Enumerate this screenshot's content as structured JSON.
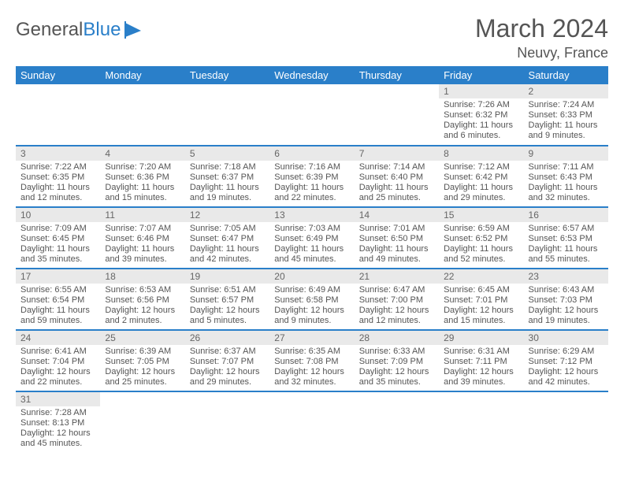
{
  "logo": {
    "text1": "General",
    "text2": "Blue"
  },
  "title": "March 2024",
  "location": "Neuvy, France",
  "colors": {
    "header_bg": "#2a7fc9",
    "header_text": "#ffffff",
    "daynum_bg": "#e9e9e9",
    "row_divider": "#2a7fc9",
    "body_text": "#555555"
  },
  "day_names": [
    "Sunday",
    "Monday",
    "Tuesday",
    "Wednesday",
    "Thursday",
    "Friday",
    "Saturday"
  ],
  "weeks": [
    [
      null,
      null,
      null,
      null,
      null,
      {
        "n": "1",
        "sunrise": "7:26 AM",
        "sunset": "6:32 PM",
        "daylight": "11 hours and 6 minutes."
      },
      {
        "n": "2",
        "sunrise": "7:24 AM",
        "sunset": "6:33 PM",
        "daylight": "11 hours and 9 minutes."
      }
    ],
    [
      {
        "n": "3",
        "sunrise": "7:22 AM",
        "sunset": "6:35 PM",
        "daylight": "11 hours and 12 minutes."
      },
      {
        "n": "4",
        "sunrise": "7:20 AM",
        "sunset": "6:36 PM",
        "daylight": "11 hours and 15 minutes."
      },
      {
        "n": "5",
        "sunrise": "7:18 AM",
        "sunset": "6:37 PM",
        "daylight": "11 hours and 19 minutes."
      },
      {
        "n": "6",
        "sunrise": "7:16 AM",
        "sunset": "6:39 PM",
        "daylight": "11 hours and 22 minutes."
      },
      {
        "n": "7",
        "sunrise": "7:14 AM",
        "sunset": "6:40 PM",
        "daylight": "11 hours and 25 minutes."
      },
      {
        "n": "8",
        "sunrise": "7:12 AM",
        "sunset": "6:42 PM",
        "daylight": "11 hours and 29 minutes."
      },
      {
        "n": "9",
        "sunrise": "7:11 AM",
        "sunset": "6:43 PM",
        "daylight": "11 hours and 32 minutes."
      }
    ],
    [
      {
        "n": "10",
        "sunrise": "7:09 AM",
        "sunset": "6:45 PM",
        "daylight": "11 hours and 35 minutes."
      },
      {
        "n": "11",
        "sunrise": "7:07 AM",
        "sunset": "6:46 PM",
        "daylight": "11 hours and 39 minutes."
      },
      {
        "n": "12",
        "sunrise": "7:05 AM",
        "sunset": "6:47 PM",
        "daylight": "11 hours and 42 minutes."
      },
      {
        "n": "13",
        "sunrise": "7:03 AM",
        "sunset": "6:49 PM",
        "daylight": "11 hours and 45 minutes."
      },
      {
        "n": "14",
        "sunrise": "7:01 AM",
        "sunset": "6:50 PM",
        "daylight": "11 hours and 49 minutes."
      },
      {
        "n": "15",
        "sunrise": "6:59 AM",
        "sunset": "6:52 PM",
        "daylight": "11 hours and 52 minutes."
      },
      {
        "n": "16",
        "sunrise": "6:57 AM",
        "sunset": "6:53 PM",
        "daylight": "11 hours and 55 minutes."
      }
    ],
    [
      {
        "n": "17",
        "sunrise": "6:55 AM",
        "sunset": "6:54 PM",
        "daylight": "11 hours and 59 minutes."
      },
      {
        "n": "18",
        "sunrise": "6:53 AM",
        "sunset": "6:56 PM",
        "daylight": "12 hours and 2 minutes."
      },
      {
        "n": "19",
        "sunrise": "6:51 AM",
        "sunset": "6:57 PM",
        "daylight": "12 hours and 5 minutes."
      },
      {
        "n": "20",
        "sunrise": "6:49 AM",
        "sunset": "6:58 PM",
        "daylight": "12 hours and 9 minutes."
      },
      {
        "n": "21",
        "sunrise": "6:47 AM",
        "sunset": "7:00 PM",
        "daylight": "12 hours and 12 minutes."
      },
      {
        "n": "22",
        "sunrise": "6:45 AM",
        "sunset": "7:01 PM",
        "daylight": "12 hours and 15 minutes."
      },
      {
        "n": "23",
        "sunrise": "6:43 AM",
        "sunset": "7:03 PM",
        "daylight": "12 hours and 19 minutes."
      }
    ],
    [
      {
        "n": "24",
        "sunrise": "6:41 AM",
        "sunset": "7:04 PM",
        "daylight": "12 hours and 22 minutes."
      },
      {
        "n": "25",
        "sunrise": "6:39 AM",
        "sunset": "7:05 PM",
        "daylight": "12 hours and 25 minutes."
      },
      {
        "n": "26",
        "sunrise": "6:37 AM",
        "sunset": "7:07 PM",
        "daylight": "12 hours and 29 minutes."
      },
      {
        "n": "27",
        "sunrise": "6:35 AM",
        "sunset": "7:08 PM",
        "daylight": "12 hours and 32 minutes."
      },
      {
        "n": "28",
        "sunrise": "6:33 AM",
        "sunset": "7:09 PM",
        "daylight": "12 hours and 35 minutes."
      },
      {
        "n": "29",
        "sunrise": "6:31 AM",
        "sunset": "7:11 PM",
        "daylight": "12 hours and 39 minutes."
      },
      {
        "n": "30",
        "sunrise": "6:29 AM",
        "sunset": "7:12 PM",
        "daylight": "12 hours and 42 minutes."
      }
    ],
    [
      {
        "n": "31",
        "sunrise": "7:28 AM",
        "sunset": "8:13 PM",
        "daylight": "12 hours and 45 minutes."
      },
      null,
      null,
      null,
      null,
      null,
      null
    ]
  ],
  "labels": {
    "sunrise": "Sunrise:",
    "sunset": "Sunset:",
    "daylight": "Daylight:"
  }
}
